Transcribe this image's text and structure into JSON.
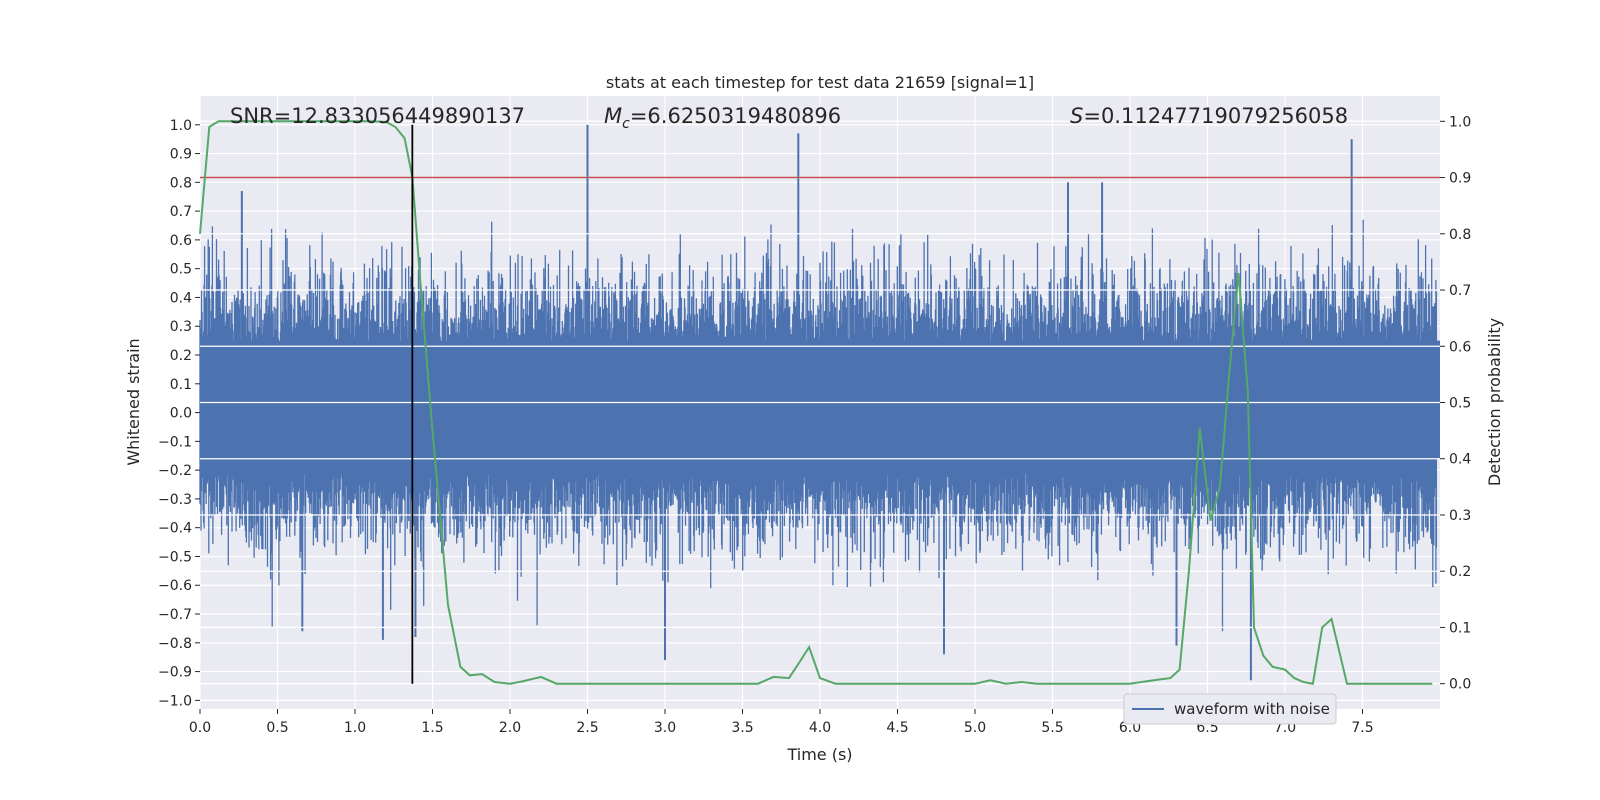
{
  "chart_data": {
    "type": "line",
    "title": "stats at each timestep for test data 21659 [signal=1]",
    "xlabel": "Time (s)",
    "ylabel_left": "Whitened strain",
    "ylabel_right": "Detection probability",
    "xlim": [
      0.0,
      8.0
    ],
    "ylim_left": [
      -1.03,
      1.1
    ],
    "ylim_right": [
      -0.045,
      1.045
    ],
    "x_ticks": [
      "0.0",
      "0.5",
      "1.0",
      "1.5",
      "2.0",
      "2.5",
      "3.0",
      "3.5",
      "4.0",
      "4.5",
      "5.0",
      "5.5",
      "6.0",
      "6.5",
      "7.0",
      "7.5"
    ],
    "x_tick_values": [
      0.0,
      0.5,
      1.0,
      1.5,
      2.0,
      2.5,
      3.0,
      3.5,
      4.0,
      4.5,
      5.0,
      5.5,
      6.0,
      6.5,
      7.0,
      7.5
    ],
    "y_left_ticks": [
      "1.0",
      "0.9",
      "0.8",
      "0.7",
      "0.6",
      "0.5",
      "0.4",
      "0.3",
      "0.2",
      "0.1",
      "0.0",
      "−0.1",
      "−0.2",
      "−0.3",
      "−0.4",
      "−0.5",
      "−0.6",
      "−0.7",
      "−0.8",
      "−0.9",
      "−1.0"
    ],
    "y_left_tick_values": [
      1.0,
      0.9,
      0.8,
      0.7,
      0.6,
      0.5,
      0.4,
      0.3,
      0.2,
      0.1,
      0.0,
      -0.1,
      -0.2,
      -0.3,
      -0.4,
      -0.5,
      -0.6,
      -0.7,
      -0.8,
      -0.9,
      -1.0
    ],
    "y_right_ticks": [
      "1.0",
      "0.9",
      "0.8",
      "0.7",
      "0.6",
      "0.5",
      "0.4",
      "0.3",
      "0.2",
      "0.1",
      "0.0"
    ],
    "y_right_tick_values": [
      1.0,
      0.9,
      0.8,
      0.7,
      0.6,
      0.5,
      0.4,
      0.3,
      0.2,
      0.1,
      0.0
    ],
    "grid": true,
    "legend": {
      "placement": "lower-right",
      "entries": [
        "waveform with noise"
      ]
    },
    "annotations": {
      "snr": "SNR=12.833056449890137",
      "mc_symbol": "M",
      "mc_sub": "c",
      "mc_value": "=6.6250319480896",
      "s_symbol": "S",
      "s_value": "=0.11247719079256058"
    },
    "threshold_right": 0.9,
    "vline_x": 1.37,
    "series": [
      {
        "name": "waveform with noise",
        "axis": "left",
        "color": "#4c72b0",
        "style": "dense-noise",
        "band_core": [
          -0.16,
          0.25
        ],
        "typical_upper": 0.42,
        "typical_lower": -0.38,
        "spikes": [
          {
            "x": 0.27,
            "y": 0.77
          },
          {
            "x": 0.66,
            "y": -0.76
          },
          {
            "x": 1.18,
            "y": -0.79
          },
          {
            "x": 1.39,
            "y": -0.78
          },
          {
            "x": 2.5,
            "y": 1.0
          },
          {
            "x": 3.0,
            "y": -0.86
          },
          {
            "x": 3.86,
            "y": 0.97
          },
          {
            "x": 4.8,
            "y": -0.84
          },
          {
            "x": 5.6,
            "y": 0.8
          },
          {
            "x": 5.82,
            "y": 0.8
          },
          {
            "x": 6.3,
            "y": -0.81
          },
          {
            "x": 6.78,
            "y": -0.93
          },
          {
            "x": 7.43,
            "y": 0.95
          }
        ]
      },
      {
        "name": "detection probability",
        "axis": "right",
        "color": "#55a868",
        "x": [
          0.0,
          0.06,
          0.12,
          0.2,
          0.4,
          0.6,
          0.8,
          1.0,
          1.1,
          1.2,
          1.26,
          1.32,
          1.37,
          1.42,
          1.5,
          1.6,
          1.68,
          1.74,
          1.82,
          1.9,
          2.0,
          2.08,
          2.2,
          2.3,
          2.5,
          2.7,
          3.0,
          3.2,
          3.4,
          3.6,
          3.7,
          3.8,
          3.86,
          3.93,
          4.0,
          4.1,
          4.3,
          4.5,
          4.8,
          5.0,
          5.1,
          5.2,
          5.3,
          5.4,
          5.5,
          5.8,
          6.0,
          6.2,
          6.26,
          6.32,
          6.38,
          6.45,
          6.52,
          6.58,
          6.64,
          6.7,
          6.76,
          6.8,
          6.86,
          6.92,
          7.0,
          7.06,
          7.12,
          7.18,
          7.24,
          7.3,
          7.4,
          7.6,
          7.8,
          7.95
        ],
        "y": [
          0.8,
          0.99,
          1.0,
          1.0,
          1.0,
          1.0,
          1.0,
          1.0,
          1.0,
          0.999,
          0.99,
          0.97,
          0.9,
          0.72,
          0.45,
          0.14,
          0.03,
          0.015,
          0.017,
          0.003,
          0.0,
          0.004,
          0.012,
          0.0,
          0.0,
          0.0,
          0.0,
          0.0,
          0.0,
          0.0,
          0.012,
          0.01,
          0.035,
          0.065,
          0.01,
          0.0,
          0.0,
          0.0,
          0.0,
          0.0,
          0.006,
          0.0,
          0.003,
          0.0,
          0.0,
          0.0,
          0.0,
          0.008,
          0.01,
          0.025,
          0.2,
          0.455,
          0.29,
          0.35,
          0.55,
          0.73,
          0.52,
          0.1,
          0.05,
          0.03,
          0.025,
          0.01,
          0.003,
          0.0,
          0.1,
          0.115,
          0.0,
          0.0,
          0.0,
          0.0
        ]
      }
    ]
  }
}
